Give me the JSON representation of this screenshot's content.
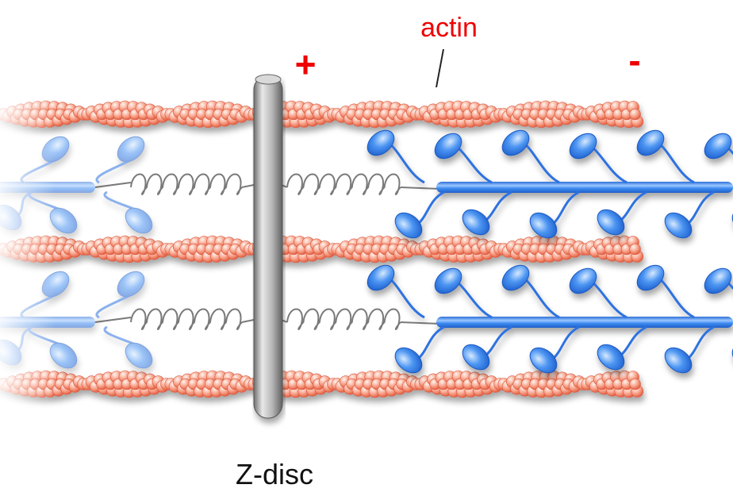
{
  "labels": {
    "actin": "actin",
    "plus_end": "+",
    "minus_end": "-",
    "z_disc": "Z-disc"
  },
  "colors": {
    "actin_bead": "#f47a5c",
    "actin_highlight": "#ffe3d8",
    "myosin": "#2f7fe8",
    "myosin_light": "#9cc7ff",
    "titin": "#777777",
    "z_disc": "#8c8c8c",
    "label_red": "#ee0000",
    "label_black": "#111111"
  }
}
